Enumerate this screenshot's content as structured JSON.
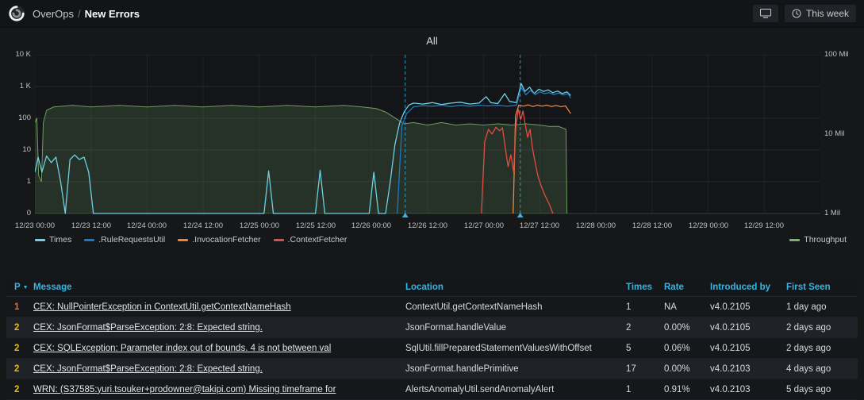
{
  "header": {
    "brand": "OverOps",
    "separator": "/",
    "page": "New Errors",
    "time_range": "This week"
  },
  "chart": {
    "title": "All",
    "y_left_ticks": [
      "10 K",
      "1 K",
      "100",
      "10",
      "1",
      "0"
    ],
    "y_right_ticks": [
      "100 Mil",
      "10 Mil",
      "1 Mil"
    ],
    "x_ticks": [
      "12/23 00:00",
      "12/23 12:00",
      "12/24 00:00",
      "12/24 12:00",
      "12/25 00:00",
      "12/25 12:00",
      "12/26 00:00",
      "12/26 12:00",
      "12/27 00:00",
      "12/27 12:00",
      "12/28 00:00",
      "12/28 12:00",
      "12/29 00:00",
      "12/29 12:00"
    ],
    "legend_left": [
      {
        "label": "Times",
        "color": "#6ed0e0"
      },
      {
        "label": ".RuleRequestsUtil",
        "color": "#1f78c1"
      },
      {
        "label": ".InvocationFetcher",
        "color": "#ef843c"
      },
      {
        "label": ".ContextFetcher",
        "color": "#e24d42"
      }
    ],
    "legend_right": [
      {
        "label": "Throughput",
        "color": "#7eb26d"
      }
    ]
  },
  "chart_data": {
    "type": "line",
    "title": "All",
    "x_unit": "hours since 12/23 00:00",
    "x_range": [
      0,
      168
    ],
    "y_left_axis": {
      "scale": "log10",
      "ticks": [
        0,
        1,
        10,
        100,
        1000,
        10000
      ]
    },
    "y_right_axis": {
      "scale": "log10",
      "unit": "Mil",
      "ticks": [
        1,
        10,
        100
      ]
    },
    "annotations_x_hours": [
      79.2,
      103.8
    ],
    "annotation_color": "#33b5e5",
    "series": [
      {
        "name": "Throughput",
        "axis": "right",
        "color": "#7eb26d",
        "fill": true,
        "points": [
          [
            0,
            14
          ],
          [
            0.4,
            16
          ],
          [
            0.8,
            3
          ],
          [
            1.4,
            2.5
          ],
          [
            1.8,
            14
          ],
          [
            2.5,
            20
          ],
          [
            4,
            22
          ],
          [
            8,
            23
          ],
          [
            12,
            22
          ],
          [
            18,
            23
          ],
          [
            24,
            22
          ],
          [
            30,
            23
          ],
          [
            36,
            22
          ],
          [
            42,
            23
          ],
          [
            48,
            22
          ],
          [
            54,
            23
          ],
          [
            60,
            22
          ],
          [
            66,
            23
          ],
          [
            70,
            22
          ],
          [
            73,
            21
          ],
          [
            75,
            19
          ],
          [
            77,
            16
          ],
          [
            79,
            13.5
          ],
          [
            81,
            14
          ],
          [
            84,
            13
          ],
          [
            87,
            14
          ],
          [
            90,
            13
          ],
          [
            93,
            13.5
          ],
          [
            96,
            13
          ],
          [
            99,
            13.5
          ],
          [
            102,
            13
          ],
          [
            105,
            13.5
          ],
          [
            108,
            13
          ],
          [
            110,
            12.5
          ],
          [
            112,
            12.5
          ],
          [
            113.6,
            11.5
          ],
          [
            113.8,
            0
          ]
        ]
      },
      {
        "name": "Times",
        "axis": "left",
        "color": "#6ed0e0",
        "fill": false,
        "points": [
          [
            0,
            2
          ],
          [
            0.7,
            6
          ],
          [
            1.5,
            2
          ],
          [
            2.5,
            6.5
          ],
          [
            3.5,
            4
          ],
          [
            4.5,
            6
          ],
          [
            5.5,
            1
          ],
          [
            6.5,
            0
          ],
          [
            7.5,
            5
          ],
          [
            8.5,
            7
          ],
          [
            9.5,
            5
          ],
          [
            10.5,
            6
          ],
          [
            11.5,
            2
          ],
          [
            12.5,
            0
          ],
          [
            49,
            0
          ],
          [
            50,
            2.2
          ],
          [
            51,
            0
          ],
          [
            60,
            0
          ],
          [
            61,
            2.3
          ],
          [
            62,
            0
          ],
          [
            71.5,
            0
          ],
          [
            72.5,
            2
          ],
          [
            73.5,
            0
          ],
          [
            75,
            0
          ],
          [
            76,
            1
          ],
          [
            77,
            15
          ],
          [
            78,
            70
          ],
          [
            79,
            160
          ],
          [
            80,
            260
          ],
          [
            81,
            300
          ],
          [
            83,
            280
          ],
          [
            85,
            310
          ],
          [
            87,
            270
          ],
          [
            89,
            300
          ],
          [
            91,
            320
          ],
          [
            93,
            280
          ],
          [
            95,
            300
          ],
          [
            96.5,
            480
          ],
          [
            97.5,
            310
          ],
          [
            99,
            290
          ],
          [
            100.5,
            600
          ],
          [
            101.5,
            340
          ],
          [
            103,
            310
          ],
          [
            104,
            1250
          ],
          [
            104.8,
            700
          ],
          [
            105.8,
            950
          ],
          [
            106.8,
            600
          ],
          [
            107.8,
            820
          ],
          [
            108.8,
            700
          ],
          [
            109.8,
            780
          ],
          [
            110.8,
            640
          ],
          [
            111.8,
            720
          ],
          [
            112.8,
            600
          ],
          [
            113.8,
            680
          ],
          [
            114.6,
            520
          ]
        ]
      },
      {
        "name": ".RuleRequestsUtil",
        "axis": "left",
        "color": "#1f78c1",
        "fill": false,
        "points": [
          [
            77.5,
            0
          ],
          [
            78.5,
            60
          ],
          [
            79.5,
            140
          ],
          [
            81,
            230
          ],
          [
            83,
            250
          ],
          [
            85,
            240
          ],
          [
            87,
            255
          ],
          [
            89,
            235
          ],
          [
            91,
            255
          ],
          [
            93,
            240
          ],
          [
            95,
            255
          ],
          [
            97,
            245
          ],
          [
            99,
            255
          ],
          [
            101,
            240
          ],
          [
            103,
            255
          ],
          [
            104,
            950
          ],
          [
            105,
            550
          ],
          [
            106,
            750
          ],
          [
            107,
            550
          ],
          [
            108,
            680
          ],
          [
            109,
            600
          ],
          [
            110,
            640
          ],
          [
            111,
            560
          ],
          [
            112,
            620
          ],
          [
            113,
            540
          ],
          [
            114,
            600
          ],
          [
            114.6,
            430
          ]
        ]
      },
      {
        "name": ".InvocationFetcher",
        "axis": "left",
        "color": "#ef843c",
        "fill": false,
        "points": [
          [
            102.3,
            0
          ],
          [
            102.8,
            120
          ],
          [
            103.5,
            260
          ],
          [
            104.5,
            240
          ],
          [
            105.5,
            265
          ],
          [
            106.5,
            235
          ],
          [
            107.5,
            260
          ],
          [
            108.5,
            240
          ],
          [
            109.5,
            258
          ],
          [
            110.5,
            235
          ],
          [
            111.5,
            252
          ],
          [
            112.5,
            230
          ],
          [
            113.5,
            245
          ],
          [
            114.6,
            140
          ]
        ]
      },
      {
        "name": ".ContextFetcher",
        "axis": "left",
        "color": "#e24d42",
        "fill": false,
        "points": [
          [
            95.5,
            0
          ],
          [
            96.2,
            18
          ],
          [
            97,
            45
          ],
          [
            97.8,
            32
          ],
          [
            98.6,
            52
          ],
          [
            99.4,
            40
          ],
          [
            100,
            50
          ],
          [
            100.6,
            12
          ],
          [
            101.2,
            3
          ],
          [
            101.8,
            7
          ],
          [
            102.4,
            2
          ],
          [
            102.9,
            60
          ],
          [
            103.4,
            190
          ],
          [
            103.9,
            90
          ],
          [
            104.4,
            170
          ],
          [
            104.9,
            60
          ],
          [
            105.4,
            25
          ],
          [
            105.9,
            45
          ],
          [
            106.4,
            12
          ],
          [
            107,
            4
          ],
          [
            107.6,
            1.5
          ],
          [
            108.2,
            0.8
          ],
          [
            109,
            0.4
          ],
          [
            110,
            0.2
          ],
          [
            110.8,
            0
          ]
        ]
      }
    ]
  },
  "table": {
    "headers": {
      "p": "P",
      "message": "Message",
      "location": "Location",
      "times": "Times",
      "rate": "Rate",
      "introduced_by": "Introduced by",
      "first_seen": "First Seen"
    },
    "rows": [
      {
        "p": "1",
        "p_color": "#e8702a",
        "message": "CEX: NullPointerException in ContextUtil.getContextNameHash",
        "location": "ContextUtil.getContextNameHash",
        "times": "1",
        "rate": "NA",
        "introduced_by": "v4.0.2105",
        "first_seen": "1 day ago"
      },
      {
        "p": "2",
        "p_color": "#ecbb13",
        "message": "CEX: JsonFormat$ParseException: 2:8: Expected string.",
        "location": "JsonFormat.handleValue",
        "times": "2",
        "rate": "0.00%",
        "introduced_by": "v4.0.2105",
        "first_seen": "2 days ago"
      },
      {
        "p": "2",
        "p_color": "#ecbb13",
        "message": "CEX: SQLException: Parameter index out of bounds. 4 is not between val",
        "location": "SqlUtil.fillPreparedStatementValuesWithOffset",
        "times": "5",
        "rate": "0.06%",
        "introduced_by": "v4.0.2105",
        "first_seen": "2 days ago"
      },
      {
        "p": "2",
        "p_color": "#ecbb13",
        "message": "CEX: JsonFormat$ParseException: 2:8: Expected string.",
        "location": "JsonFormat.handlePrimitive",
        "times": "17",
        "rate": "0.00%",
        "introduced_by": "v4.0.2103",
        "first_seen": "4 days ago"
      },
      {
        "p": "2",
        "p_color": "#ecbb13",
        "message": "WRN: (S37585:yuri.tsouker+prodowner@takipi.com) Missing timeframe for",
        "location": "AlertsAnomalyUtil.sendAnomalyAlert",
        "times": "1",
        "rate": "0.91%",
        "introduced_by": "v4.0.2103",
        "first_seen": "5 days ago"
      }
    ]
  }
}
